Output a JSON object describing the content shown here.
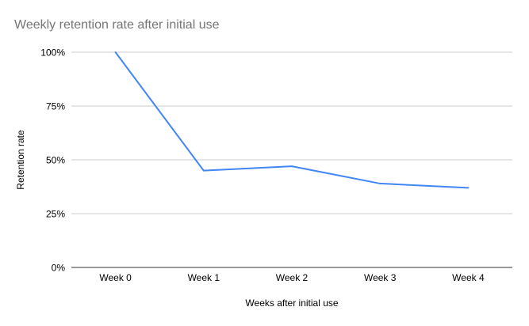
{
  "chart_data": {
    "type": "line",
    "title": "Weekly retention rate after initial use",
    "xlabel": "Weeks after initial use",
    "ylabel": "Retention rate",
    "categories": [
      "Week 0",
      "Week 1",
      "Week 2",
      "Week 3",
      "Week 4"
    ],
    "series": [
      {
        "name": "Retention rate",
        "values": [
          100,
          45,
          47,
          39,
          37
        ]
      }
    ],
    "ylim": [
      0,
      100
    ],
    "yticks": [
      0,
      25,
      50,
      75,
      100
    ],
    "ytick_suffix": "%",
    "grid": true,
    "legend": "none",
    "colors": {
      "line": "#4285f4",
      "gridline": "#cccccc",
      "baseline": "#333333",
      "title": "#757575",
      "tick_label": "#000000",
      "axis_title": "#000000",
      "background": "#ffffff"
    }
  }
}
